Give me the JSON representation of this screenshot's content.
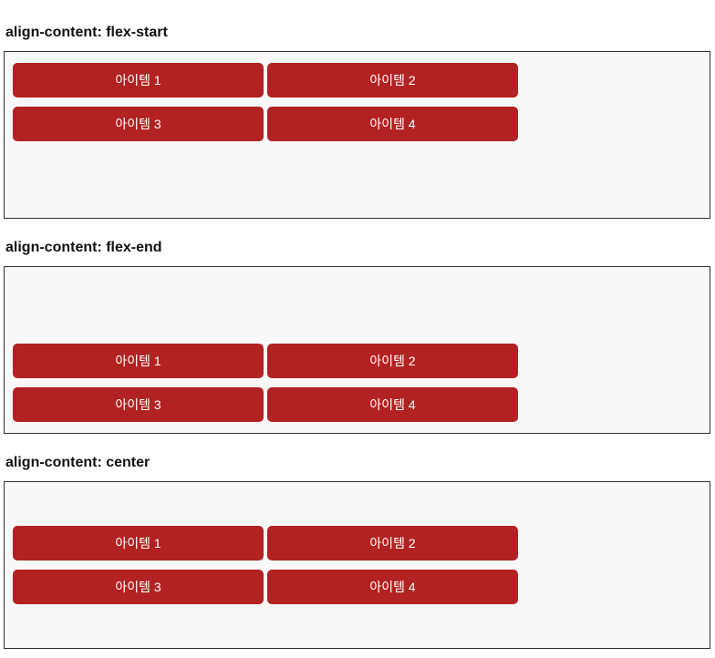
{
  "colors": {
    "page_background": "#ffffff",
    "container_background": "#f8f8f8",
    "container_border": "#333333",
    "item_background": "#b22222",
    "item_text": "#ffffff",
    "heading_text": "#111111"
  },
  "sections": [
    {
      "heading": "align-content: flex-start",
      "align_value": "flex-start",
      "items": [
        "아이템 1",
        "아이템 2",
        "아이템 3",
        "아이템 4"
      ]
    },
    {
      "heading": "align-content: flex-end",
      "align_value": "flex-end",
      "items": [
        "아이템 1",
        "아이템 2",
        "아이템 3",
        "아이템 4"
      ]
    },
    {
      "heading": "align-content: center",
      "align_value": "center",
      "items": [
        "아이템 1",
        "아이템 2",
        "아이템 3",
        "아이템 4"
      ]
    }
  ]
}
